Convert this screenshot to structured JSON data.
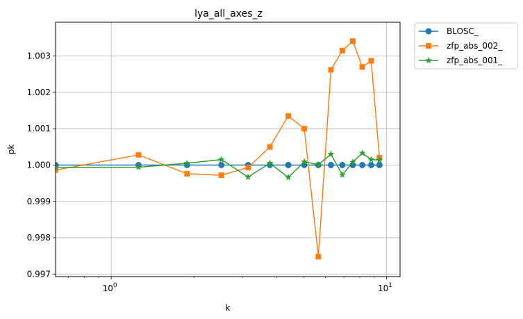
{
  "chart_data": {
    "type": "line",
    "title": "lya_all_axes_z",
    "xlabel": "k",
    "ylabel": "pk",
    "xscale": "log",
    "xlim": [
      0.628,
      11.2
    ],
    "ylim": [
      0.99693,
      1.00393
    ],
    "xticks": [
      {
        "value": 1,
        "base": "10",
        "exp": "0"
      },
      {
        "value": 10,
        "base": "10",
        "exp": "1"
      }
    ],
    "yticks": [
      0.997,
      0.998,
      0.999,
      1.0,
      1.001,
      1.002,
      1.003
    ],
    "ytick_labels": [
      "0.997",
      "0.998",
      "0.999",
      "1.000",
      "1.001",
      "1.002",
      "1.003"
    ],
    "grid": true,
    "legend_position": "outside top-right",
    "x": [
      0.628,
      1.257,
      1.885,
      2.513,
      3.142,
      3.77,
      4.398,
      5.027,
      5.655,
      6.283,
      6.912,
      7.54,
      8.168,
      8.796,
      9.425
    ],
    "series": [
      {
        "name": "BLOSC_",
        "color": "#1f77b4",
        "marker": "circle",
        "values": [
          1.0,
          1.0,
          1.0,
          1.0,
          1.0,
          1.0,
          1.0,
          1.0,
          1.0,
          1.0,
          1.0,
          1.0,
          1.0,
          1.0,
          1.0
        ]
      },
      {
        "name": "zfp_abs_002_",
        "color": "#ff7f0e",
        "marker": "square",
        "values": [
          0.99986,
          1.00028,
          0.99976,
          0.99972,
          0.99993,
          1.0005,
          1.00135,
          1.001,
          0.99748,
          1.00262,
          1.00315,
          1.00341,
          1.0027,
          1.00287,
          1.0002
        ]
      },
      {
        "name": "zfp_abs_001_",
        "color": "#2ca02c",
        "marker": "star",
        "values": [
          0.99993,
          0.99994,
          1.00005,
          1.00015,
          0.99967,
          1.00005,
          0.99966,
          1.00009,
          1.00001,
          1.0003,
          0.99973,
          1.00008,
          1.00033,
          1.00015,
          1.00014
        ]
      }
    ]
  }
}
